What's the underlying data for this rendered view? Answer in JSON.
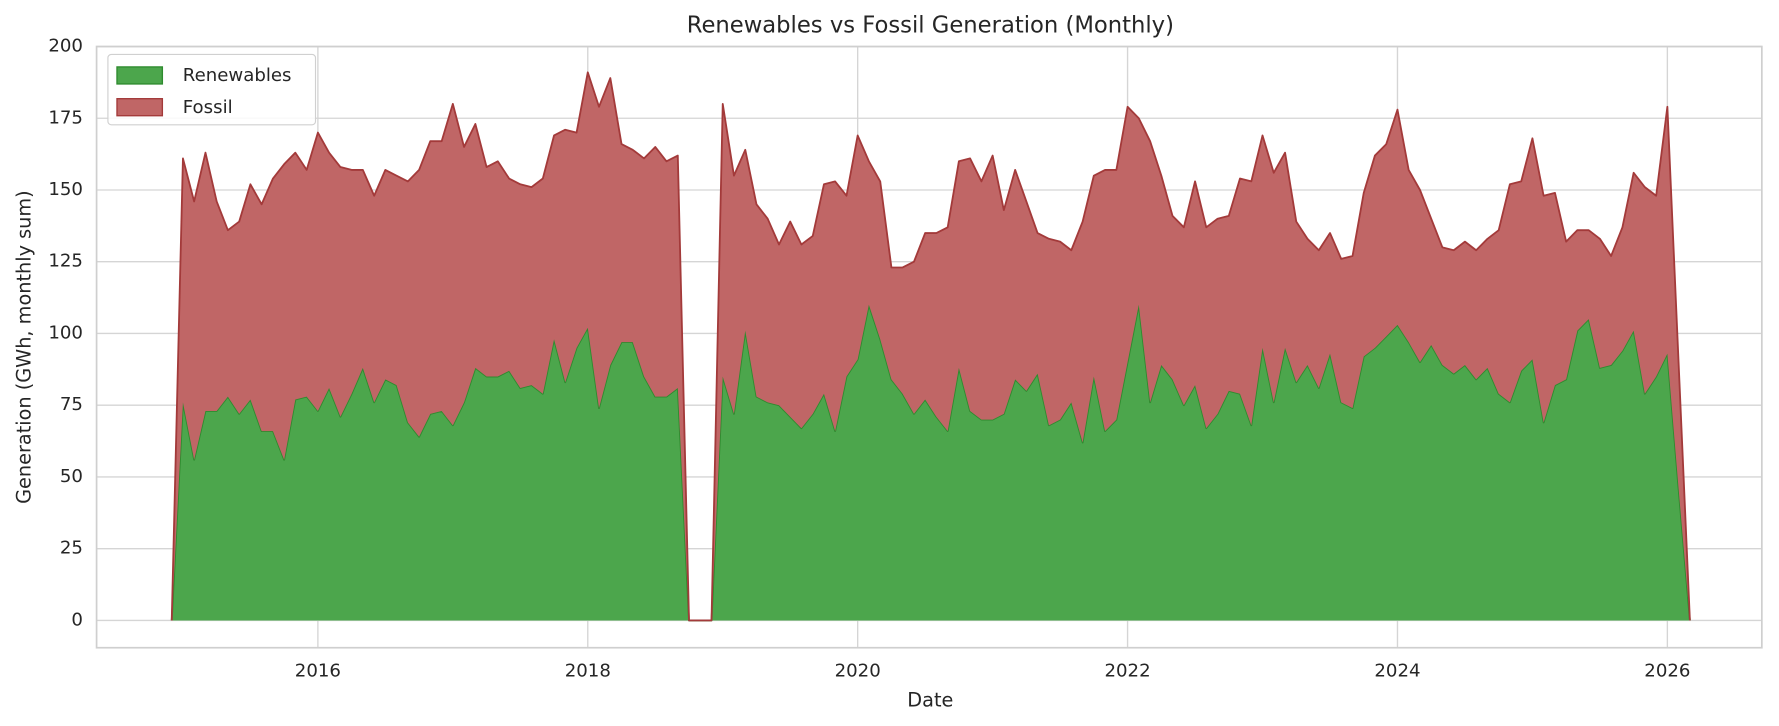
{
  "chart_data": {
    "type": "area",
    "title": "Renewables vs Fossil Generation (Monthly)",
    "x_label": "Date",
    "y_label": "Generation (GWh, monthly sum)",
    "x": [
      2014.917,
      2015.0,
      2015.083,
      2015.167,
      2015.25,
      2015.333,
      2015.417,
      2015.5,
      2015.583,
      2015.667,
      2015.75,
      2015.833,
      2015.917,
      2016.0,
      2016.083,
      2016.167,
      2016.25,
      2016.333,
      2016.417,
      2016.5,
      2016.583,
      2016.667,
      2016.75,
      2016.833,
      2016.917,
      2017.0,
      2017.083,
      2017.167,
      2017.25,
      2017.333,
      2017.417,
      2017.5,
      2017.583,
      2017.667,
      2017.75,
      2017.833,
      2017.917,
      2018.0,
      2018.083,
      2018.167,
      2018.25,
      2018.333,
      2018.417,
      2018.5,
      2018.583,
      2018.667,
      2018.75,
      2018.833,
      2018.917,
      2019.0,
      2019.083,
      2019.167,
      2019.25,
      2019.333,
      2019.417,
      2019.5,
      2019.583,
      2019.667,
      2019.75,
      2019.833,
      2019.917,
      2020.0,
      2020.083,
      2020.167,
      2020.25,
      2020.333,
      2020.417,
      2020.5,
      2020.583,
      2020.667,
      2020.75,
      2020.833,
      2020.917,
      2021.0,
      2021.083,
      2021.167,
      2021.25,
      2021.333,
      2021.417,
      2021.5,
      2021.583,
      2021.667,
      2021.75,
      2021.833,
      2021.917,
      2022.0,
      2022.083,
      2022.167,
      2022.25,
      2022.333,
      2022.417,
      2022.5,
      2022.583,
      2022.667,
      2022.75,
      2022.833,
      2022.917,
      2023.0,
      2023.083,
      2023.167,
      2023.25,
      2023.333,
      2023.417,
      2023.5,
      2023.583,
      2023.667,
      2023.75,
      2023.833,
      2023.917,
      2024.0,
      2024.083,
      2024.167,
      2024.25,
      2024.333,
      2024.417,
      2024.5,
      2024.583,
      2024.667,
      2024.75,
      2024.833,
      2024.917,
      2025.0,
      2025.083,
      2025.167,
      2025.25,
      2025.333,
      2025.417,
      2025.5,
      2025.583,
      2025.667,
      2025.75,
      2025.833,
      2025.917,
      2026.0,
      2026.083,
      2026.167
    ],
    "series": [
      {
        "name": "Renewables",
        "color": "#4ca64c",
        "edge": "#2e8b2e",
        "values": [
          0,
          76,
          56,
          73,
          73,
          78,
          72,
          77,
          66,
          66,
          56,
          77,
          78,
          73,
          81,
          71,
          79,
          88,
          76,
          84,
          82,
          69,
          64,
          72,
          73,
          68,
          76,
          88,
          85,
          85,
          87,
          81,
          82,
          79,
          98,
          83,
          95,
          102,
          74,
          89,
          97,
          97,
          85,
          78,
          78,
          81,
          0,
          0,
          0,
          85,
          72,
          101,
          78,
          76,
          75,
          71,
          67,
          72,
          79,
          66,
          85,
          91,
          110,
          98,
          84,
          79,
          72,
          77,
          71,
          66,
          88,
          73,
          70,
          70,
          72,
          84,
          80,
          86,
          68,
          70,
          76,
          62,
          85,
          66,
          70,
          90,
          110,
          76,
          89,
          84,
          75,
          82,
          67,
          72,
          80,
          79,
          68,
          95,
          76,
          95,
          83,
          89,
          81,
          93,
          76,
          74,
          92,
          95,
          99,
          103,
          97,
          90,
          96,
          89,
          86,
          89,
          84,
          88,
          79,
          76,
          87,
          91,
          69,
          82,
          84,
          101,
          105,
          88,
          89,
          94,
          101,
          79,
          85,
          93,
          46,
          0
        ]
      },
      {
        "name": "Fossil",
        "color": "#c06666",
        "edge": "#a33a3a",
        "values": [
          0,
          85,
          90,
          90,
          73,
          58,
          67,
          75,
          79,
          88,
          103,
          86,
          79,
          97,
          82,
          87,
          78,
          69,
          72,
          73,
          73,
          84,
          93,
          95,
          94,
          112,
          89,
          85,
          73,
          75,
          67,
          71,
          69,
          75,
          71,
          88,
          75,
          89,
          105,
          100,
          69,
          67,
          76,
          87,
          82,
          81,
          0,
          0,
          0,
          95,
          83,
          63,
          67,
          64,
          56,
          68,
          64,
          62,
          73,
          87,
          63,
          78,
          50,
          55,
          39,
          44,
          53,
          58,
          64,
          71,
          72,
          88,
          83,
          92,
          71,
          73,
          66,
          49,
          65,
          62,
          53,
          77,
          70,
          91,
          87,
          89,
          65,
          91,
          66,
          57,
          62,
          71,
          70,
          68,
          61,
          75,
          85,
          74,
          80,
          68,
          56,
          44,
          48,
          42,
          50,
          53,
          57,
          67,
          67,
          75,
          60,
          60,
          44,
          41,
          43,
          43,
          45,
          45,
          57,
          76,
          66,
          77,
          79,
          67,
          48,
          35,
          31,
          45,
          38,
          43,
          55,
          72,
          63,
          86,
          44,
          0
        ]
      }
    ],
    "xlim": [
      2014.36,
      2026.7
    ],
    "ylim": [
      -9.5,
      200
    ],
    "xticks": [
      2016,
      2018,
      2020,
      2022,
      2024,
      2026
    ],
    "yticks": [
      0,
      25,
      50,
      75,
      100,
      125,
      150,
      175,
      200
    ],
    "grid": true,
    "legend": "upper left"
  }
}
